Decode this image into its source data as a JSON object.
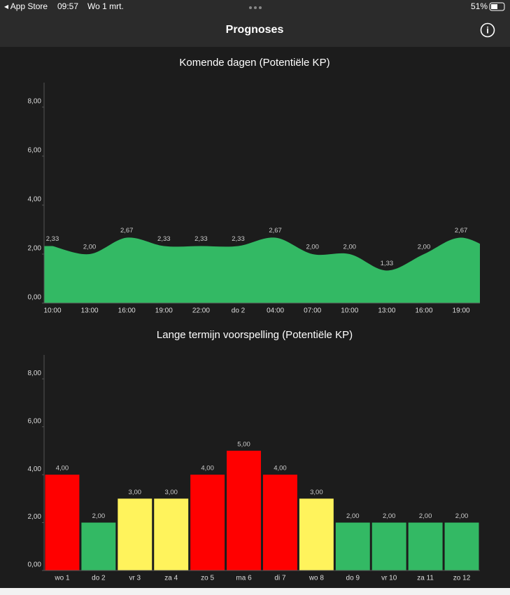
{
  "status_bar": {
    "back": "◂ App Store",
    "time": "09:57",
    "date": "Wo 1 mrt.",
    "battery": "51%"
  },
  "nav": {
    "title": "Prognoses",
    "info": "i"
  },
  "chart_data": [
    {
      "type": "area",
      "title": "Komende dagen (Potentiële KP)",
      "categories": [
        "10:00",
        "13:00",
        "16:00",
        "19:00",
        "22:00",
        "do 2",
        "04:00",
        "07:00",
        "10:00",
        "13:00",
        "16:00",
        "19:00",
        null
      ],
      "values": [
        2.33,
        2.0,
        2.67,
        2.33,
        2.33,
        2.33,
        2.67,
        2.0,
        2.0,
        1.33,
        2.0,
        2.67,
        2.0
      ],
      "value_labels": [
        "2,33",
        "2,00",
        "2,67",
        "2,33",
        "2,33",
        "2,33",
        "2,67",
        "2,00",
        "2,00",
        "1,33",
        "2,00",
        "2,67",
        null
      ],
      "color": "#33b964",
      "ylim": [
        0,
        9
      ],
      "yticks": [
        {
          "value": 0,
          "label": "0,00"
        },
        {
          "value": 2,
          "label": "2,00"
        },
        {
          "value": 4,
          "label": "4,00"
        },
        {
          "value": 6,
          "label": "6,00"
        },
        {
          "value": 8,
          "label": "8,00"
        }
      ]
    },
    {
      "type": "bar",
      "title": "Lange termijn voorspelling (Potentiële KP)",
      "categories": [
        "wo 1",
        "do 2",
        "vr 3",
        "za 4",
        "zo 5",
        "ma 6",
        "di 7",
        "wo 8",
        "do 9",
        "vr 10",
        "za 11",
        "zo 12"
      ],
      "values": [
        4,
        2,
        3,
        3,
        4,
        5,
        4,
        3,
        2,
        2,
        2,
        2
      ],
      "value_labels": [
        "4,00",
        "2,00",
        "3,00",
        "3,00",
        "4,00",
        "5,00",
        "4,00",
        "3,00",
        "2,00",
        "2,00",
        "2,00",
        "2,00"
      ],
      "colors": [
        "#ff0000",
        "#33b964",
        "#fff35c",
        "#fff35c",
        "#ff0000",
        "#ff0000",
        "#ff0000",
        "#fff35c",
        "#33b964",
        "#33b964",
        "#33b964",
        "#33b964"
      ],
      "ylim": [
        0,
        9
      ],
      "yticks": [
        {
          "value": 0,
          "label": "0,00"
        },
        {
          "value": 2,
          "label": "2,00"
        },
        {
          "value": 4,
          "label": "4,00"
        },
        {
          "value": 6,
          "label": "6,00"
        },
        {
          "value": 8,
          "label": "8,00"
        }
      ]
    }
  ]
}
